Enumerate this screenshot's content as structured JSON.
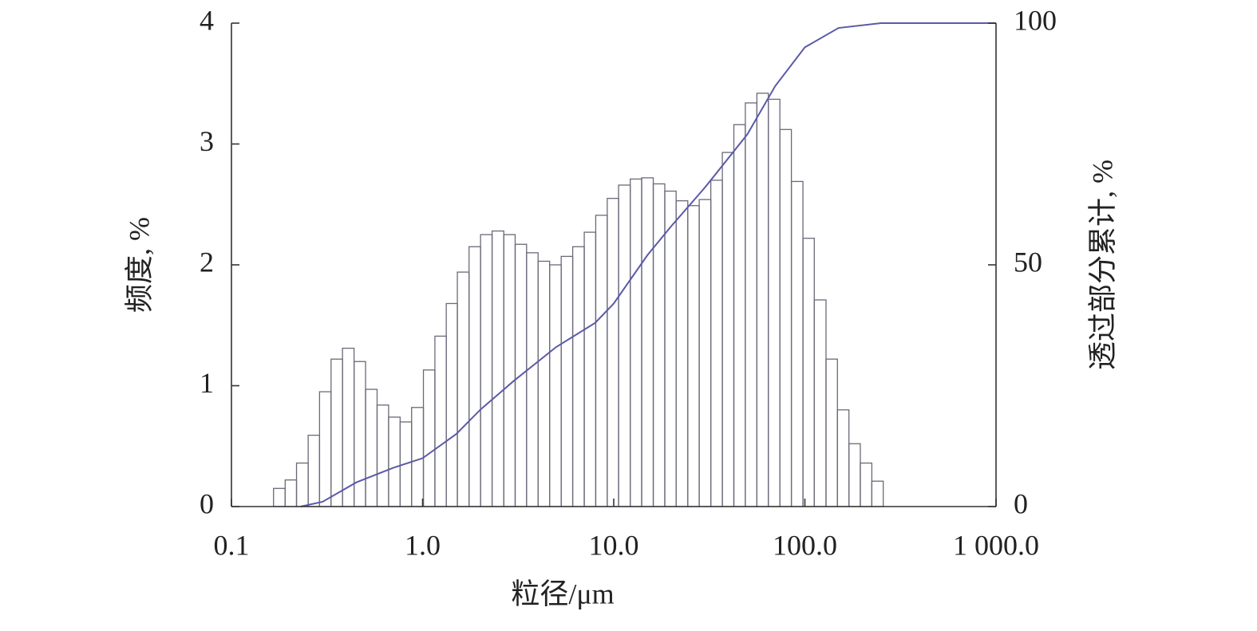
{
  "chart_data": {
    "type": "histogram",
    "xlabel": "粒径/μm",
    "ylabel": "频度, %",
    "y2label": "透过部分累计, %",
    "xscale": "log",
    "xlim": [
      0.1,
      1000
    ],
    "xticks": [
      {
        "value": 0.1,
        "label": "0.1"
      },
      {
        "value": 1,
        "label": "1.0"
      },
      {
        "value": 10,
        "label": "10.0"
      },
      {
        "value": 100,
        "label": "100.0"
      },
      {
        "value": 1000,
        "label": "1 000.0"
      }
    ],
    "ylim": [
      0,
      4
    ],
    "yticks": [
      0,
      1,
      2,
      3,
      4
    ],
    "y2lim": [
      0,
      100
    ],
    "y2ticks": [
      0,
      50,
      100
    ],
    "color": "#6a6a7a",
    "bins": [
      0.166,
      0.191,
      0.219,
      0.252,
      0.289,
      0.332,
      0.381,
      0.438,
      0.503,
      0.578,
      0.664,
      0.763,
      0.876,
      1.01,
      1.16,
      1.33,
      1.52,
      1.75,
      2.01,
      2.31,
      2.66,
      3.05,
      3.5,
      4.02,
      4.62,
      5.31,
      6.1,
      7.01,
      8.05,
      9.25,
      10.6,
      12.2,
      14.0,
      16.1,
      18.5,
      21.2,
      24.4,
      28.0,
      32.2,
      37.0,
      42.5,
      48.8,
      56.1,
      64.4,
      74.0,
      85.0,
      97.7,
      112,
      129,
      148,
      170,
      195,
      224,
      257
    ],
    "values": [
      0.15,
      0.22,
      0.36,
      0.59,
      0.95,
      1.22,
      1.31,
      1.2,
      0.97,
      0.84,
      0.74,
      0.7,
      0.82,
      1.13,
      1.41,
      1.68,
      1.94,
      2.15,
      2.25,
      2.28,
      2.25,
      2.17,
      2.1,
      2.03,
      2.0,
      2.07,
      2.15,
      2.27,
      2.41,
      2.55,
      2.66,
      2.71,
      2.72,
      2.67,
      2.61,
      2.53,
      2.49,
      2.54,
      2.7,
      2.93,
      3.16,
      3.34,
      3.42,
      3.37,
      3.12,
      2.69,
      2.22,
      1.71,
      1.22,
      0.8,
      0.52,
      0.36,
      0.21
    ],
    "line": {
      "axis": "y2",
      "color": "#5a5aa8",
      "x": [
        0.23,
        0.3,
        0.45,
        0.7,
        1.0,
        1.5,
        2,
        3,
        5,
        8,
        10,
        15,
        20,
        30,
        50,
        70,
        100,
        150,
        250,
        1000
      ],
      "values": [
        0,
        1,
        5,
        8,
        10,
        15,
        20,
        26,
        33,
        38,
        42,
        52,
        58,
        66,
        77,
        87,
        95,
        99,
        100,
        100
      ]
    }
  }
}
